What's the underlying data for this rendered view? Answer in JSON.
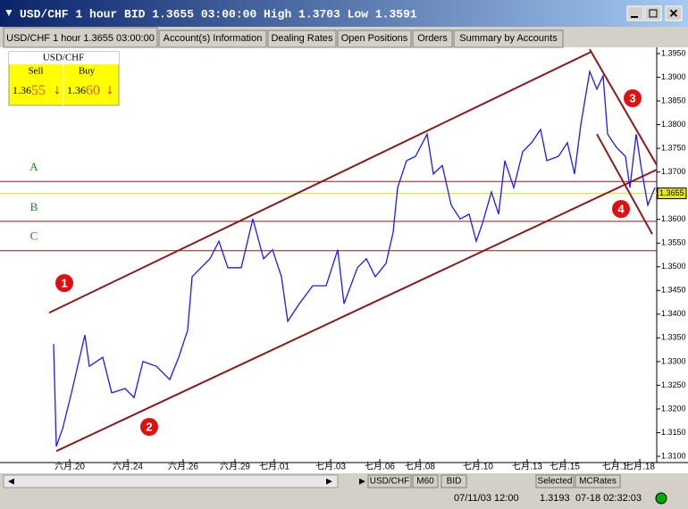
{
  "window": {
    "title": "USD/CHF 1 hour BID 1.3655 03:00:00 High 1.3703 Low 1.3591",
    "tabs": [
      "USD/CHF 1 hour 1.3655 03:00:00",
      "Account(s) Information",
      "Dealing Rates",
      "Open Positions",
      "Orders",
      "Summary by Accounts"
    ],
    "quote": {
      "symbol": "USD/CHF",
      "sell_label": "Sell",
      "buy_label": "Buy",
      "sell": {
        "big": "1.36",
        "pips": "55"
      },
      "buy": {
        "big": "1.36",
        "pips": "60"
      }
    },
    "toolbar": [
      "USD/CHF",
      "M60",
      "BID",
      "Selected",
      "MCRates"
    ],
    "status": {
      "time": "07/11/03 12:00",
      "price": "1.3193",
      "clock": "07-18 02:32:03"
    }
  },
  "chart_data": {
    "type": "line",
    "color": "#1a1aff",
    "x": [
      60,
      63,
      70,
      80,
      95,
      100,
      115,
      125,
      140,
      150,
      160,
      175,
      190,
      200,
      210,
      215,
      225,
      235,
      245,
      255,
      270,
      283,
      295,
      305,
      315,
      322,
      335,
      350,
      365,
      378,
      385,
      400,
      410,
      420,
      432,
      440,
      445,
      455,
      465,
      478,
      485,
      495,
      505,
      515,
      525,
      533,
      540,
      550,
      558,
      565,
      575,
      585,
      595,
      605,
      612,
      625,
      635,
      643,
      650,
      655,
      660,
      668,
      675,
      680,
      690,
      700,
      705,
      712,
      718,
      725,
      733
    ],
    "values": [
      1.3337,
      1.3121,
      1.3158,
      1.3234,
      1.3356,
      1.329,
      1.3309,
      1.3234,
      1.3243,
      1.3224,
      1.33,
      1.329,
      1.3262,
      1.3309,
      1.3366,
      1.3479,
      1.3498,
      1.3517,
      1.3554,
      1.3498,
      1.3498,
      1.3601,
      1.3517,
      1.3536,
      1.3479,
      1.3385,
      1.3422,
      1.346,
      1.346,
      1.3536,
      1.3422,
      1.3498,
      1.3517,
      1.3479,
      1.3507,
      1.3573,
      1.3667,
      1.3724,
      1.3733,
      1.378,
      1.3696,
      1.3714,
      1.363,
      1.3601,
      1.3611,
      1.3554,
      1.3592,
      1.3658,
      1.3611,
      1.3724,
      1.3667,
      1.3743,
      1.3762,
      1.379,
      1.3724,
      1.3733,
      1.3762,
      1.3696,
      1.3799,
      1.3856,
      1.3912,
      1.3875,
      1.3903,
      1.378,
      1.3752,
      1.3733,
      1.3667,
      1.378,
      1.3705,
      1.363,
      1.3667
    ],
    "xlim": [
      0,
      735
    ],
    "xticks": [
      {
        "value": 78,
        "label": "六月.20"
      },
      {
        "value": 143,
        "label": "六月.24"
      },
      {
        "value": 205,
        "label": "六月.26"
      },
      {
        "value": 263,
        "label": "六月.29"
      },
      {
        "value": 307,
        "label": "七月.01"
      },
      {
        "value": 370,
        "label": "七月.03"
      },
      {
        "value": 425,
        "label": "七月.06"
      },
      {
        "value": 470,
        "label": "七月.08"
      },
      {
        "value": 535,
        "label": "七月.10"
      },
      {
        "value": 590,
        "label": "七月.13"
      },
      {
        "value": 632,
        "label": "七月.15"
      },
      {
        "value": 688,
        "label": "七月.1"
      },
      {
        "value": 716,
        "label": "七月.18"
      }
    ],
    "ylim": [
      1.31,
      1.395
    ],
    "yticks": [
      {
        "value": 1.31,
        "label": "1.3100"
      },
      {
        "value": 1.315,
        "label": "1.3150"
      },
      {
        "value": 1.32,
        "label": "1.3200"
      },
      {
        "value": 1.325,
        "label": "1.3250"
      },
      {
        "value": 1.33,
        "label": "1.3300"
      },
      {
        "value": 1.335,
        "label": "1.3350"
      },
      {
        "value": 1.34,
        "label": "1.3400"
      },
      {
        "value": 1.345,
        "label": "1.3450"
      },
      {
        "value": 1.35,
        "label": "1.3500"
      },
      {
        "value": 1.355,
        "label": "1.3550"
      },
      {
        "value": 1.36,
        "label": "1.3600"
      },
      {
        "value": 1.365,
        "label": "1.3650"
      },
      {
        "value": 1.37,
        "label": "1.3700"
      },
      {
        "value": 1.375,
        "label": "1.3750"
      },
      {
        "value": 1.38,
        "label": "1.3800"
      },
      {
        "value": 1.385,
        "label": "1.3850"
      },
      {
        "value": 1.39,
        "label": "1.3900"
      },
      {
        "value": 1.395,
        "label": "1.3950"
      }
    ],
    "current_price": {
      "value": 1.3655,
      "label": "1.3655",
      "color": "#e8e800"
    },
    "levels": [
      {
        "label": "A",
        "value": 1.368
      },
      {
        "label": "B",
        "value": 1.3596
      },
      {
        "label": "C",
        "value": 1.3534
      }
    ],
    "level_color": "#8b1a1a",
    "trendlines": [
      {
        "x": [
          55,
          662
        ],
        "values": [
          1.3403,
          1.3954
        ]
      },
      {
        "x": [
          63,
          735
        ],
        "values": [
          1.3111,
          1.3705
        ]
      },
      {
        "x": [
          660,
          735
        ],
        "values": [
          1.3959,
          1.3715
        ]
      },
      {
        "x": [
          668,
          730
        ],
        "values": [
          1.378,
          1.3569
        ]
      }
    ],
    "trend_color": "#8b1a1a",
    "annotations": [
      "1",
      "2",
      "3",
      "4"
    ]
  }
}
